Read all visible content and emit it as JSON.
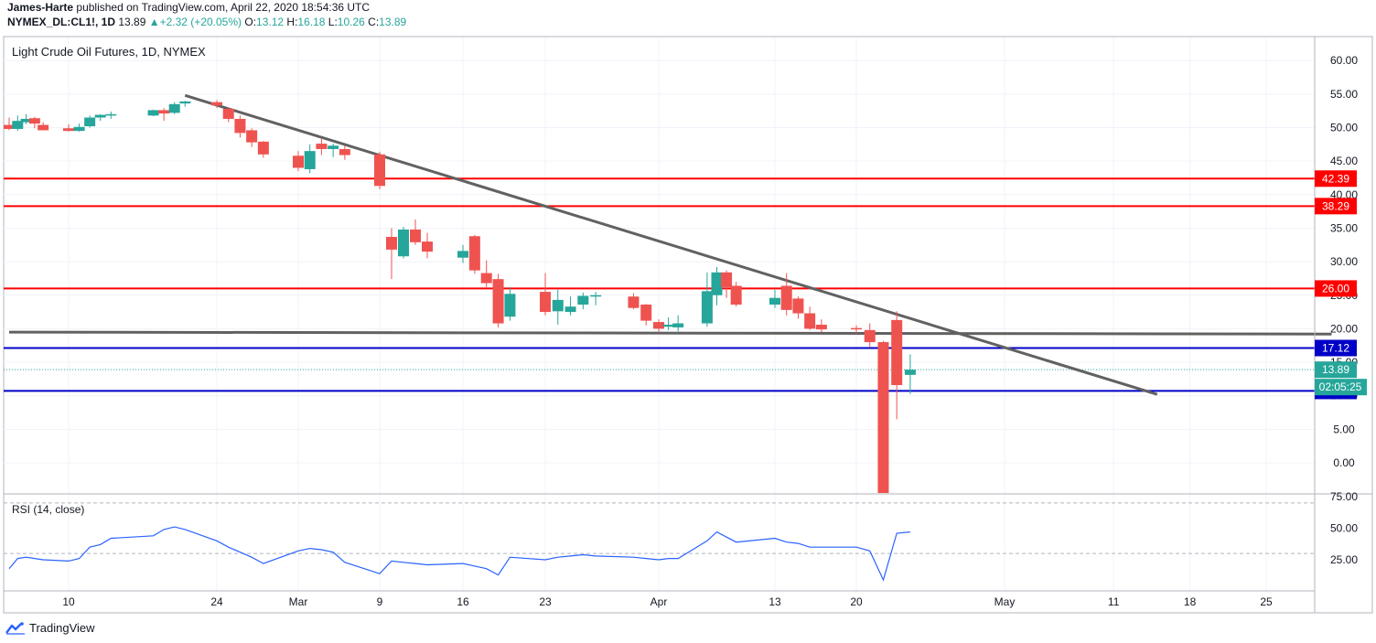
{
  "header": {
    "author": "James-Harte",
    "published_text": "published on TradingView.com, April 22, 2020 18:54:36 UTC",
    "symbol": "NYMEX_DL:CL1!, 1D",
    "last": "13.89",
    "change": "▲+2.32 (+20.05%)",
    "o_label": "O:",
    "o_value": "13.12",
    "h_label": "H:",
    "h_value": "16.18",
    "l_label": "L:",
    "l_value": "10.26",
    "c_label": "C:",
    "c_value": "13.89"
  },
  "footer": {
    "brand": "TradingView"
  },
  "colors": {
    "up": "#26a69a",
    "down": "#ef5350",
    "red_line": "#ff0000",
    "blue_line": "#0000c8",
    "trend": "#616161",
    "rsi": "#2962ff"
  },
  "chart_data": [
    {
      "type": "candlestick",
      "title": "Light Crude Oil Futures, 1D, NYMEX",
      "ylim": [
        -5,
        63
      ],
      "y_ticks": [
        "60.00",
        "55.00",
        "50.00",
        "45.00",
        "40.00",
        "35.00",
        "30.00",
        "25.00",
        "20.00",
        "15.00",
        "10.00",
        "5.00",
        "0.00"
      ],
      "x_tick_labels": [
        {
          "label": "10",
          "date": "2020-02-10"
        },
        {
          "label": "24",
          "date": "2020-02-24"
        },
        {
          "label": "Mar",
          "date": "2020-03-02"
        },
        {
          "label": "9",
          "date": "2020-03-09"
        },
        {
          "label": "16",
          "date": "2020-03-16"
        },
        {
          "label": "23",
          "date": "2020-03-23"
        },
        {
          "label": "Apr",
          "date": "2020-04-01"
        },
        {
          "label": "13",
          "date": "2020-04-13"
        },
        {
          "label": "20",
          "date": "2020-04-20"
        },
        {
          "label": "May",
          "date": "2020-05-01"
        },
        {
          "label": "11",
          "date": "2020-05-11"
        },
        {
          "label": "18",
          "date": "2020-05-18"
        },
        {
          "label": "25",
          "date": "2020-05-25"
        }
      ],
      "candles": [
        {
          "date": "2020-02-03",
          "o": 50.4,
          "h": 51.5,
          "l": 49.6,
          "c": 49.8
        },
        {
          "date": "2020-02-04",
          "o": 49.8,
          "h": 51.8,
          "l": 49.5,
          "c": 51.0
        },
        {
          "date": "2020-02-05",
          "o": 50.8,
          "h": 52.0,
          "l": 50.5,
          "c": 51.3
        },
        {
          "date": "2020-02-06",
          "o": 51.4,
          "h": 51.6,
          "l": 49.9,
          "c": 50.6
        },
        {
          "date": "2020-02-07",
          "o": 50.4,
          "h": 50.8,
          "l": 49.6,
          "c": 49.6
        },
        {
          "date": "2020-02-10",
          "o": 49.9,
          "h": 50.5,
          "l": 49.4,
          "c": 49.5
        },
        {
          "date": "2020-02-11",
          "o": 49.5,
          "h": 50.6,
          "l": 49.4,
          "c": 50.1
        },
        {
          "date": "2020-02-12",
          "o": 50.2,
          "h": 51.8,
          "l": 50.0,
          "c": 51.5
        },
        {
          "date": "2020-02-13",
          "o": 51.5,
          "h": 52.0,
          "l": 51.0,
          "c": 51.9
        },
        {
          "date": "2020-02-14",
          "o": 51.9,
          "h": 52.4,
          "l": 51.3,
          "c": 52.0
        },
        {
          "date": "2020-02-18",
          "o": 51.8,
          "h": 52.7,
          "l": 51.7,
          "c": 52.6
        },
        {
          "date": "2020-02-19",
          "o": 52.6,
          "h": 52.9,
          "l": 51.0,
          "c": 52.1
        },
        {
          "date": "2020-02-20",
          "o": 52.2,
          "h": 53.8,
          "l": 52.0,
          "c": 53.5
        },
        {
          "date": "2020-02-21",
          "o": 53.6,
          "h": 54.0,
          "l": 53.1,
          "c": 53.9
        },
        {
          "date": "2020-02-24",
          "o": 53.8,
          "h": 54.1,
          "l": 52.9,
          "c": 53.3
        },
        {
          "date": "2020-02-25",
          "o": 52.8,
          "h": 53.0,
          "l": 50.8,
          "c": 51.3
        },
        {
          "date": "2020-02-26",
          "o": 51.3,
          "h": 51.8,
          "l": 48.5,
          "c": 49.2
        },
        {
          "date": "2020-02-27",
          "o": 49.6,
          "h": 49.9,
          "l": 47.1,
          "c": 47.8
        },
        {
          "date": "2020-02-28",
          "o": 47.9,
          "h": 48.0,
          "l": 45.5,
          "c": 46.0
        },
        {
          "date": "2020-03-02",
          "o": 45.8,
          "h": 46.5,
          "l": 43.5,
          "c": 44.0
        },
        {
          "date": "2020-03-03",
          "o": 43.8,
          "h": 47.5,
          "l": 43.2,
          "c": 46.5
        },
        {
          "date": "2020-03-04",
          "o": 47.6,
          "h": 48.3,
          "l": 45.9,
          "c": 46.8
        },
        {
          "date": "2020-03-05",
          "o": 46.8,
          "h": 47.6,
          "l": 45.6,
          "c": 47.3
        },
        {
          "date": "2020-03-06",
          "o": 46.8,
          "h": 47.3,
          "l": 45.2,
          "c": 45.9
        },
        {
          "date": "2020-03-09",
          "o": 46.0,
          "h": 46.4,
          "l": 40.8,
          "c": 41.3
        },
        {
          "date": "2020-03-10",
          "o": 33.7,
          "h": 35.0,
          "l": 27.4,
          "c": 31.8
        },
        {
          "date": "2020-03-11",
          "o": 30.8,
          "h": 35.2,
          "l": 30.5,
          "c": 34.8
        },
        {
          "date": "2020-03-12",
          "o": 34.8,
          "h": 36.3,
          "l": 32.5,
          "c": 32.9
        },
        {
          "date": "2020-03-13",
          "o": 33.0,
          "h": 34.3,
          "l": 30.5,
          "c": 31.5
        },
        {
          "date": "2020-03-16",
          "o": 30.6,
          "h": 32.5,
          "l": 29.8,
          "c": 31.6
        },
        {
          "date": "2020-03-17",
          "o": 33.8,
          "h": 34.0,
          "l": 28.2,
          "c": 28.7
        },
        {
          "date": "2020-03-18",
          "o": 28.3,
          "h": 30.2,
          "l": 26.2,
          "c": 26.8
        },
        {
          "date": "2020-03-19",
          "o": 27.4,
          "h": 28.2,
          "l": 20.2,
          "c": 20.8
        },
        {
          "date": "2020-03-20",
          "o": 21.8,
          "h": 26.2,
          "l": 21.2,
          "c": 25.2
        },
        {
          "date": "2020-03-23",
          "o": 25.5,
          "h": 28.3,
          "l": 22.0,
          "c": 22.5
        },
        {
          "date": "2020-03-24",
          "o": 22.6,
          "h": 25.8,
          "l": 20.6,
          "c": 24.3
        },
        {
          "date": "2020-03-25",
          "o": 22.5,
          "h": 24.8,
          "l": 22.0,
          "c": 23.3
        },
        {
          "date": "2020-03-26",
          "o": 23.6,
          "h": 25.4,
          "l": 22.9,
          "c": 24.9
        },
        {
          "date": "2020-03-27",
          "o": 24.8,
          "h": 25.5,
          "l": 23.5,
          "c": 25.0
        },
        {
          "date": "2020-03-30",
          "o": 24.8,
          "h": 25.3,
          "l": 22.9,
          "c": 23.1
        },
        {
          "date": "2020-03-31",
          "o": 23.6,
          "h": 23.7,
          "l": 20.5,
          "c": 21.2
        },
        {
          "date": "2020-04-01",
          "o": 21.0,
          "h": 21.4,
          "l": 19.5,
          "c": 20.0
        },
        {
          "date": "2020-04-02",
          "o": 20.3,
          "h": 21.7,
          "l": 19.8,
          "c": 20.6
        },
        {
          "date": "2020-04-03",
          "o": 20.2,
          "h": 22.0,
          "l": 19.6,
          "c": 20.8
        },
        {
          "date": "2020-04-06",
          "o": 20.8,
          "h": 28.4,
          "l": 20.3,
          "c": 25.6
        },
        {
          "date": "2020-04-07",
          "o": 25.0,
          "h": 29.2,
          "l": 23.5,
          "c": 28.4
        },
        {
          "date": "2020-04-08",
          "o": 28.4,
          "h": 28.7,
          "l": 24.6,
          "c": 26.2
        },
        {
          "date": "2020-04-09",
          "o": 26.4,
          "h": 27.0,
          "l": 23.3,
          "c": 23.6
        },
        {
          "date": "2020-04-13",
          "o": 23.6,
          "h": 25.8,
          "l": 23.1,
          "c": 24.6
        },
        {
          "date": "2020-04-14",
          "o": 26.4,
          "h": 28.3,
          "l": 22.0,
          "c": 22.8
        },
        {
          "date": "2020-04-15",
          "o": 24.5,
          "h": 24.8,
          "l": 21.5,
          "c": 22.3
        },
        {
          "date": "2020-04-16",
          "o": 22.3,
          "h": 23.3,
          "l": 19.8,
          "c": 20.0
        },
        {
          "date": "2020-04-17",
          "o": 20.6,
          "h": 21.4,
          "l": 19.5,
          "c": 19.9
        },
        {
          "date": "2020-04-20",
          "o": 20.1,
          "h": 20.5,
          "l": 19.3,
          "c": 19.9
        },
        {
          "date": "2020-04-21",
          "o": 19.8,
          "h": 20.8,
          "l": 17.2,
          "c": 18.0
        },
        {
          "date": "2020-04-22",
          "o": 18.0,
          "h": 18.2,
          "l": -5.0,
          "c": -5.0
        },
        {
          "date": "2020-04-23",
          "o": 21.3,
          "h": 22.6,
          "l": 6.5,
          "c": 11.6
        },
        {
          "date": "2020-04-24",
          "o": 13.12,
          "h": 16.18,
          "l": 10.26,
          "c": 13.89
        }
      ],
      "horizontal_lines": [
        {
          "value": 42.39,
          "label": "42.39",
          "color": "#ff0000"
        },
        {
          "value": 38.29,
          "label": "38.29",
          "color": "#ff0000"
        },
        {
          "value": 26.0,
          "label": "26.00",
          "color": "#ff0000"
        },
        {
          "value": 17.12,
          "label": "17.12",
          "color": "#0000c8"
        },
        {
          "value": 10.72,
          "label": "10.72",
          "color": "#0000c8"
        }
      ],
      "price_label": {
        "value": 13.89,
        "label": "13.89"
      },
      "countdown_label": "02:05:25",
      "trend_lines": [
        {
          "from": {
            "date": "2020-02-21",
            "y": 54.8
          },
          "to": {
            "date": "2020-05-15",
            "y": 10.2
          }
        },
        {
          "from": {
            "date": "2020-02-03",
            "y": 19.5
          },
          "to": {
            "date": "2020-05-31",
            "y": 19.2
          }
        }
      ]
    },
    {
      "type": "line",
      "title": "RSI (14, close)",
      "ylim": [
        0,
        78
      ],
      "y_ticks": [
        "75.00",
        "50.00",
        "25.00"
      ],
      "bands": [
        70,
        30
      ],
      "series": [
        {
          "values": [
            18,
            26,
            27,
            26,
            25,
            24,
            26,
            35,
            37,
            42,
            44,
            49,
            51,
            49,
            40,
            35,
            31,
            27,
            22,
            32,
            34,
            33,
            31,
            23,
            14,
            24,
            23,
            22,
            21,
            22,
            20,
            18,
            13,
            27,
            25,
            27,
            28,
            29,
            28,
            27,
            26,
            25,
            26,
            26,
            40,
            47,
            43,
            39,
            42,
            39,
            38,
            35,
            35,
            35,
            32,
            9,
            46,
            47
          ]
        }
      ]
    }
  ]
}
